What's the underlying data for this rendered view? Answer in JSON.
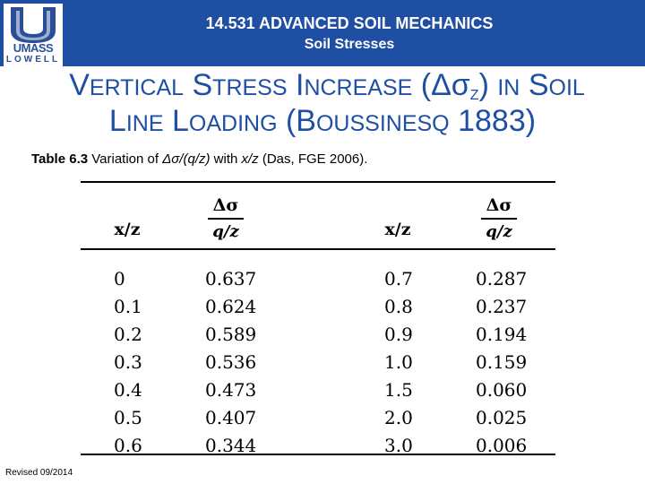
{
  "header": {
    "course_title": "14.531 ADVANCED SOIL MECHANICS",
    "course_subtitle": "Soil Stresses",
    "logo_text": "UMASS",
    "logo_subtext": "LOWELL"
  },
  "title": {
    "w1_cap": "V",
    "w1_rest": "ERTICAL",
    "w2_cap": "S",
    "w2_rest": "TRESS",
    "w3_cap": "I",
    "w3_rest": "NCREASE",
    "delta_open": "(Δσ",
    "sub_z": "Z",
    "delta_close": ")",
    "in_word": "IN",
    "w4_cap": "S",
    "w4_rest": "OIL"
  },
  "subtitle": {
    "w1_cap": "L",
    "w1_rest": "INE",
    "w2_cap": "L",
    "w2_rest": "OADING",
    "paren_cap": "(B",
    "w3_rest": "OUSSINESQ",
    "year": "1883)"
  },
  "caption": {
    "label": "Table 6.3",
    "text_a": " Variation of ",
    "expr": "Δσ/(q/z)",
    "text_b": " with ",
    "var": "x/z",
    "text_c": " (Das, FGE 2006)."
  },
  "table": {
    "col_x_label": "x/z",
    "frac_num": "Δσ",
    "frac_den": "q/z",
    "left": {
      "x": [
        "0",
        "0.1",
        "0.2",
        "0.3",
        "0.4",
        "0.5",
        "0.6"
      ],
      "ratio": [
        "0.637",
        "0.624",
        "0.589",
        "0.536",
        "0.473",
        "0.407",
        "0.344"
      ]
    },
    "right": {
      "x": [
        "0.7",
        "0.8",
        "0.9",
        "1.0",
        "1.5",
        "2.0",
        "3.0"
      ],
      "ratio": [
        "0.287",
        "0.237",
        "0.194",
        "0.159",
        "0.060",
        "0.025",
        "0.006"
      ]
    }
  },
  "footer": {
    "revised": "Revised 09/2014"
  },
  "colors": {
    "header_bg": "#1f4fa3",
    "title_text": "#1f4fa3"
  }
}
